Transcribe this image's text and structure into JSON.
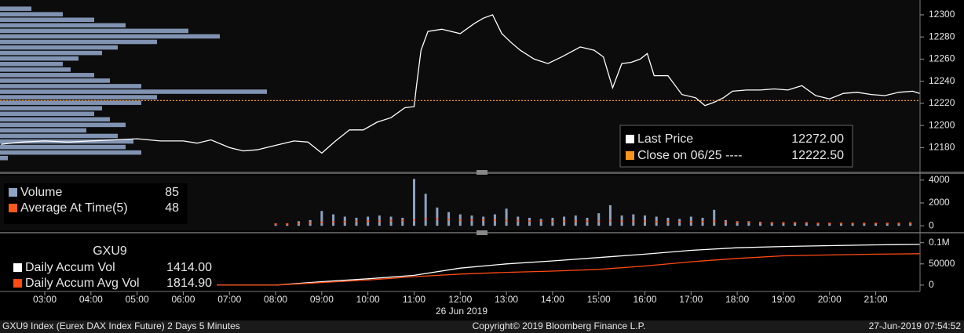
{
  "chart_data": [
    {
      "type": "line",
      "xlim": [
        2.03,
        21.96
      ],
      "ylim": [
        12159,
        12312
      ],
      "yticks": [
        12180,
        12200,
        12220,
        12240,
        12260,
        12280,
        12300
      ],
      "profile": {
        "color": "#8ea2c4",
        "xlim": [
          0,
          1172
        ],
        "levels": [
          12170,
          12175,
          12180,
          12185,
          12190,
          12195,
          12200,
          12205,
          12210,
          12215,
          12220,
          12225,
          12230,
          12235,
          12240,
          12245,
          12250,
          12255,
          12260,
          12265,
          12270,
          12275,
          12280,
          12285,
          12290,
          12295,
          12300,
          12305
        ],
        "values": [
          10,
          180,
          160,
          170,
          150,
          110,
          160,
          140,
          120,
          130,
          180,
          200,
          340,
          180,
          140,
          120,
          90,
          80,
          100,
          130,
          150,
          200,
          280,
          240,
          160,
          120,
          80,
          40
        ]
      },
      "series": [
        {
          "name": "Last Price",
          "color": "#ffffff",
          "legend_value": {
            "value": 12272,
            "label": "12272.00"
          },
          "x": [
            2.05,
            2.5,
            3,
            3.5,
            4,
            4.5,
            5,
            5.5,
            6,
            6.3,
            6.6,
            7,
            7.3,
            7.6,
            8,
            8.4,
            8.7,
            9,
            9.3,
            9.6,
            9.9,
            10.2,
            10.5,
            10.8,
            11,
            11.05,
            11.15,
            11.3,
            11.6,
            12,
            12.3,
            12.5,
            12.7,
            12.9,
            13.1,
            13.3,
            13.6,
            13.9,
            14.2,
            14.6,
            14.9,
            15.1,
            15.3,
            15.5,
            15.7,
            15.9,
            16.05,
            16.2,
            16.5,
            16.8,
            17.1,
            17.3,
            17.5,
            17.7,
            17.9,
            18.2,
            18.5,
            18.8,
            19.1,
            19.4,
            19.7,
            20,
            20.3,
            20.6,
            20.9,
            21.2,
            21.5,
            21.8,
            21.95
          ],
          "values": [
            12183,
            12185,
            12186,
            12185,
            12186,
            12187,
            12188,
            12186,
            12186,
            12184,
            12187,
            12180,
            12177,
            12178,
            12182,
            12186,
            12185,
            12175,
            12186,
            12196,
            12196,
            12203,
            12207,
            12216,
            12217,
            12235,
            12268,
            12285,
            12287,
            12283,
            12292,
            12297,
            12300,
            12283,
            12275,
            12268,
            12260,
            12256,
            12262,
            12271,
            12268,
            12262,
            12234,
            12256,
            12257,
            12260,
            12265,
            12245,
            12245,
            12228,
            12225,
            12218,
            12221,
            12225,
            12231,
            12232,
            12232,
            12233,
            12232,
            12236,
            12227,
            12224,
            12229,
            12230,
            12228,
            12227,
            12230,
            12231,
            12229
          ]
        },
        {
          "name": "Close on 06/25 ----",
          "color": "#f7941d",
          "hline": {
            "value": 12222.5,
            "label": "12222.50"
          }
        }
      ]
    },
    {
      "type": "bar",
      "xlim": [
        2.03,
        21.96
      ],
      "ylim": [
        -400,
        4400
      ],
      "yticks": [
        0,
        2000,
        4000
      ],
      "x": [
        8,
        8.25,
        8.5,
        8.75,
        9,
        9.25,
        9.5,
        9.75,
        10,
        10.25,
        10.5,
        10.75,
        11,
        11.25,
        11.5,
        11.75,
        12,
        12.25,
        12.5,
        12.75,
        13,
        13.25,
        13.5,
        13.75,
        14,
        14.25,
        14.5,
        14.75,
        15,
        15.25,
        15.5,
        15.75,
        16,
        16.25,
        16.5,
        16.75,
        17,
        17.25,
        17.5,
        17.75,
        18,
        18.25,
        18.5,
        18.75,
        19,
        19.25,
        19.5,
        19.75,
        20,
        20.25,
        20.5,
        20.75,
        21,
        21.25,
        21.5,
        21.75
      ],
      "series": [
        {
          "name": "Volume",
          "color": "#8ea2c4",
          "mark": "bar",
          "legend_value": 85,
          "values": [
            100,
            200,
            400,
            500,
            1300,
            1000,
            800,
            700,
            800,
            900,
            800,
            700,
            4100,
            2800,
            1600,
            1200,
            1000,
            900,
            800,
            1000,
            1500,
            800,
            700,
            600,
            700,
            800,
            900,
            700,
            1100,
            1800,
            900,
            1000,
            900,
            800,
            700,
            600,
            800,
            700,
            1400,
            500,
            400,
            400,
            350,
            300,
            300,
            300,
            250,
            250,
            250,
            250,
            200,
            200,
            200,
            250,
            250,
            300
          ]
        },
        {
          "name": "Average At Time(5)",
          "color": "#ff5a1a",
          "mark": "dot",
          "legend_value": 48,
          "values": [
            150,
            150,
            200,
            250,
            300,
            350,
            350,
            400,
            400,
            400,
            450,
            450,
            500,
            600,
            600,
            550,
            500,
            500,
            500,
            500,
            450,
            450,
            400,
            400,
            400,
            400,
            400,
            400,
            400,
            450,
            400,
            400,
            400,
            350,
            350,
            350,
            350,
            350,
            400,
            300,
            300,
            300,
            250,
            250,
            250,
            250,
            250,
            200,
            200,
            200,
            200,
            200,
            200,
            200,
            200,
            200
          ]
        }
      ]
    },
    {
      "type": "line",
      "title": "GXU9",
      "date_label": "26 Jun 2019",
      "xlim": [
        2.03,
        21.96
      ],
      "ylim": [
        -15000,
        118000
      ],
      "yticks": [
        0,
        50000,
        {
          "value": 100000,
          "label": "0.1M"
        }
      ],
      "xticks": [
        {
          "value": 3,
          "label": "03:00"
        },
        {
          "value": 4,
          "label": "04:00"
        },
        {
          "value": 5,
          "label": "05:00"
        },
        {
          "value": 6,
          "label": "06:00"
        },
        {
          "value": 7,
          "label": "07:00"
        },
        {
          "value": 8,
          "label": "08:00"
        },
        {
          "value": 9,
          "label": "09:00"
        },
        {
          "value": 10,
          "label": "10:00"
        },
        {
          "value": 11,
          "label": "11:00"
        },
        {
          "value": 12,
          "label": "12:00"
        },
        {
          "value": 13,
          "label": "13:00"
        },
        {
          "value": 14,
          "label": "14:00"
        },
        {
          "value": 15,
          "label": "15:00"
        },
        {
          "value": 16,
          "label": "16:00"
        },
        {
          "value": 17,
          "label": "17:00"
        },
        {
          "value": 18,
          "label": "18:00"
        },
        {
          "value": 19,
          "label": "19:00"
        },
        {
          "value": 20,
          "label": "20:00"
        },
        {
          "value": 21,
          "label": "21:00"
        }
      ],
      "series": [
        {
          "name": "Daily Accum Vol",
          "color": "#ffffff",
          "legend_value": {
            "value": 1414,
            "label": "1414.00"
          },
          "x": [
            2,
            8,
            9,
            10,
            11,
            12,
            13,
            14,
            15,
            16,
            17,
            18,
            19,
            20,
            21,
            21.95
          ],
          "values": [
            0,
            0,
            8000,
            15000,
            23000,
            40000,
            50000,
            57000,
            65000,
            73000,
            82000,
            88000,
            91000,
            93000,
            95000,
            96000
          ]
        },
        {
          "name": "Daily Accum Avg Vol",
          "color": "#ff4a12",
          "legend_value": {
            "value": 1814.9,
            "label": "1814.90"
          },
          "x": [
            2,
            8,
            9,
            10,
            11,
            12,
            13,
            14,
            15,
            16,
            17,
            18,
            19,
            20,
            21,
            21.95
          ],
          "values": [
            0,
            0,
            6000,
            12000,
            20000,
            26000,
            30000,
            33000,
            37000,
            45000,
            55000,
            63000,
            69000,
            71000,
            73000,
            74000
          ]
        }
      ]
    }
  ],
  "footer": {
    "left": "GXU9 Index (Eurex DAX Index Future) 2 Days 5 Minutes",
    "center": "Copyright© 2019 Bloomberg Finance L.P.",
    "right": "27-Jun-2019 07:54:52"
  }
}
